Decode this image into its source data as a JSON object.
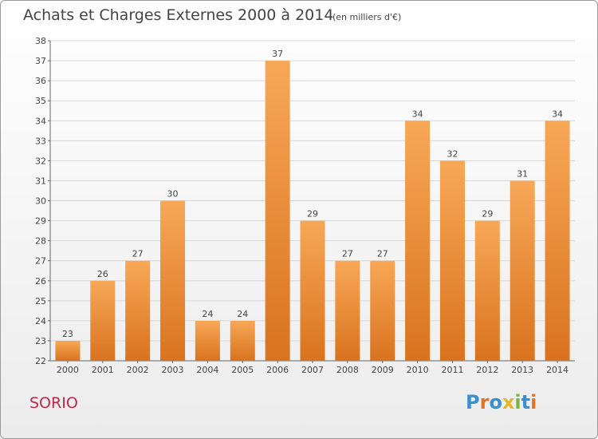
{
  "header": {
    "title": "Achats et Charges Externes 2000 à 2014",
    "subtitle": "(en milliers d'€)"
  },
  "footer": {
    "place": "SORIO",
    "logo": "Proxiti"
  },
  "colors": {
    "bar_light": "#f7a857",
    "bar_dark": "#d9731f",
    "grid": "#d8d8d8",
    "place_text": "#c0284c",
    "logo_letters": [
      "#3a8fd0",
      "#e2742a",
      "#3a8fd0",
      "#e5b62a",
      "#7cb53e",
      "#3a8fd0",
      "#e2742a"
    ]
  },
  "chart_data": {
    "type": "bar",
    "title": "Achats et Charges Externes 2000 à 2014",
    "subtitle": "(en milliers d'€)",
    "categories": [
      "2000",
      "2001",
      "2002",
      "2003",
      "2004",
      "2005",
      "2006",
      "2007",
      "2008",
      "2009",
      "2010",
      "2011",
      "2012",
      "2013",
      "2014"
    ],
    "values": [
      23,
      26,
      27,
      30,
      24,
      24,
      37,
      29,
      27,
      27,
      34,
      32,
      29,
      31,
      34
    ],
    "ylim": [
      22,
      38
    ],
    "yticks": [
      22,
      23,
      24,
      25,
      26,
      27,
      28,
      29,
      30,
      31,
      32,
      33,
      34,
      35,
      36,
      37,
      38
    ],
    "grid": true,
    "data_labels": true
  }
}
